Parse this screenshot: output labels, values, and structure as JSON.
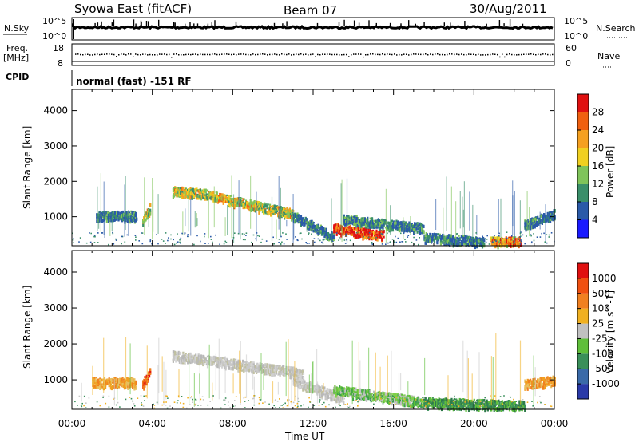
{
  "header": {
    "station": "Syowa East (fitACF)",
    "beam": "Beam 07",
    "date": "30/Aug/2011"
  },
  "strips": {
    "nsky_label": "N.Sky",
    "nsky_top": "10^5",
    "nsky_bottom": "10^0",
    "nsearch_label": "N.Search",
    "nsearch_top": "10^5",
    "nsearch_bottom": "10^0",
    "freq_label": "Freq.",
    "freq_unit": "[MHz]",
    "freq_top": "18",
    "freq_bottom": "8",
    "nave_label": "Nave",
    "nave_top": "60",
    "nave_bottom": "0",
    "cpid_label": "CPID",
    "cpid_value": "normal (fast) -151 RF"
  },
  "chart_data": [
    {
      "type": "heatmap",
      "panel": "power",
      "ylabel": "Slant Range [km]",
      "xlabel": "",
      "x_ticks": [
        "00:00",
        "04:00",
        "08:00",
        "12:00",
        "16:00",
        "20:00",
        "00:00"
      ],
      "x_range_hours": [
        0,
        24
      ],
      "y_ticks": [
        1000,
        2000,
        3000,
        4000
      ],
      "ylim": [
        180,
        4600
      ],
      "colorbar": {
        "label": "Power [dB]",
        "ticks": [
          "4",
          "8",
          "12",
          "16",
          "20",
          "24",
          "28"
        ],
        "colors": [
          "#1a1aff",
          "#2a5aa8",
          "#3a8f6a",
          "#7fc45a",
          "#f0d020",
          "#f5a020",
          "#f06010",
          "#e01010"
        ]
      },
      "echo_bands": [
        {
          "t_start": 1.2,
          "t_end": 3.2,
          "range_start": 1050,
          "range_end": 1050,
          "level": 0.25
        },
        {
          "t_start": 3.5,
          "t_end": 3.9,
          "range_start": 900,
          "range_end": 1300,
          "level": 0.6
        },
        {
          "t_start": 5.0,
          "t_end": 7.0,
          "range_start": 1750,
          "range_end": 1650,
          "level": 0.55
        },
        {
          "t_start": 7.0,
          "t_end": 9.0,
          "range_start": 1600,
          "range_end": 1350,
          "level": 0.6
        },
        {
          "t_start": 9.0,
          "t_end": 11.0,
          "range_start": 1350,
          "range_end": 1100,
          "level": 0.55
        },
        {
          "t_start": 11.0,
          "t_end": 13.0,
          "range_start": 1050,
          "range_end": 450,
          "level": 0.3
        },
        {
          "t_start": 13.0,
          "t_end": 15.5,
          "range_start": 700,
          "range_end": 500,
          "level": 0.9
        },
        {
          "t_start": 13.5,
          "t_end": 17.5,
          "range_start": 950,
          "range_end": 700,
          "level": 0.3
        },
        {
          "t_start": 17.5,
          "t_end": 20.5,
          "range_start": 450,
          "range_end": 300,
          "level": 0.3
        },
        {
          "t_start": 20.8,
          "t_end": 22.3,
          "range_start": 320,
          "range_end": 320,
          "level": 0.75
        },
        {
          "t_start": 22.5,
          "t_end": 24.0,
          "range_start": 800,
          "range_end": 1100,
          "level": 0.25
        }
      ]
    },
    {
      "type": "heatmap",
      "panel": "velocity",
      "ylabel": "Slant Range [km]",
      "xlabel": "Time UT",
      "x_ticks": [
        "00:00",
        "04:00",
        "08:00",
        "12:00",
        "16:00",
        "20:00",
        "00:00"
      ],
      "x_range_hours": [
        0,
        24
      ],
      "y_ticks": [
        1000,
        2000,
        3000,
        4000
      ],
      "ylim": [
        180,
        4600
      ],
      "colorbar": {
        "label": "Velocity [m s^-1]",
        "ticks": [
          "1000",
          "500",
          "100",
          "25",
          "-25",
          "-100",
          "-500",
          "-1000"
        ],
        "colors": [
          "#2a3aa8",
          "#3a6aa8",
          "#3a8f5a",
          "#5fbf3a",
          "#c0c0c0",
          "#f0b020",
          "#f08020",
          "#f05010",
          "#e01010"
        ]
      },
      "echo_bands": [
        {
          "t_start": 1.0,
          "t_end": 3.2,
          "range_start": 950,
          "range_end": 950,
          "vel": "orange"
        },
        {
          "t_start": 3.5,
          "t_end": 3.9,
          "range_start": 900,
          "range_end": 1300,
          "vel": "red-orange"
        },
        {
          "t_start": 5.0,
          "t_end": 11.5,
          "range_start": 1700,
          "range_end": 1200,
          "vel": "grey"
        },
        {
          "t_start": 11.0,
          "t_end": 13.5,
          "range_start": 1000,
          "range_end": 500,
          "vel": "grey"
        },
        {
          "t_start": 13.0,
          "t_end": 17.5,
          "range_start": 750,
          "range_end": 400,
          "vel": "green"
        },
        {
          "t_start": 17.5,
          "t_end": 22.5,
          "range_start": 400,
          "range_end": 300,
          "vel": "dark-green"
        },
        {
          "t_start": 22.5,
          "t_end": 24.0,
          "range_start": 900,
          "range_end": 1000,
          "vel": "orange"
        }
      ]
    }
  ]
}
